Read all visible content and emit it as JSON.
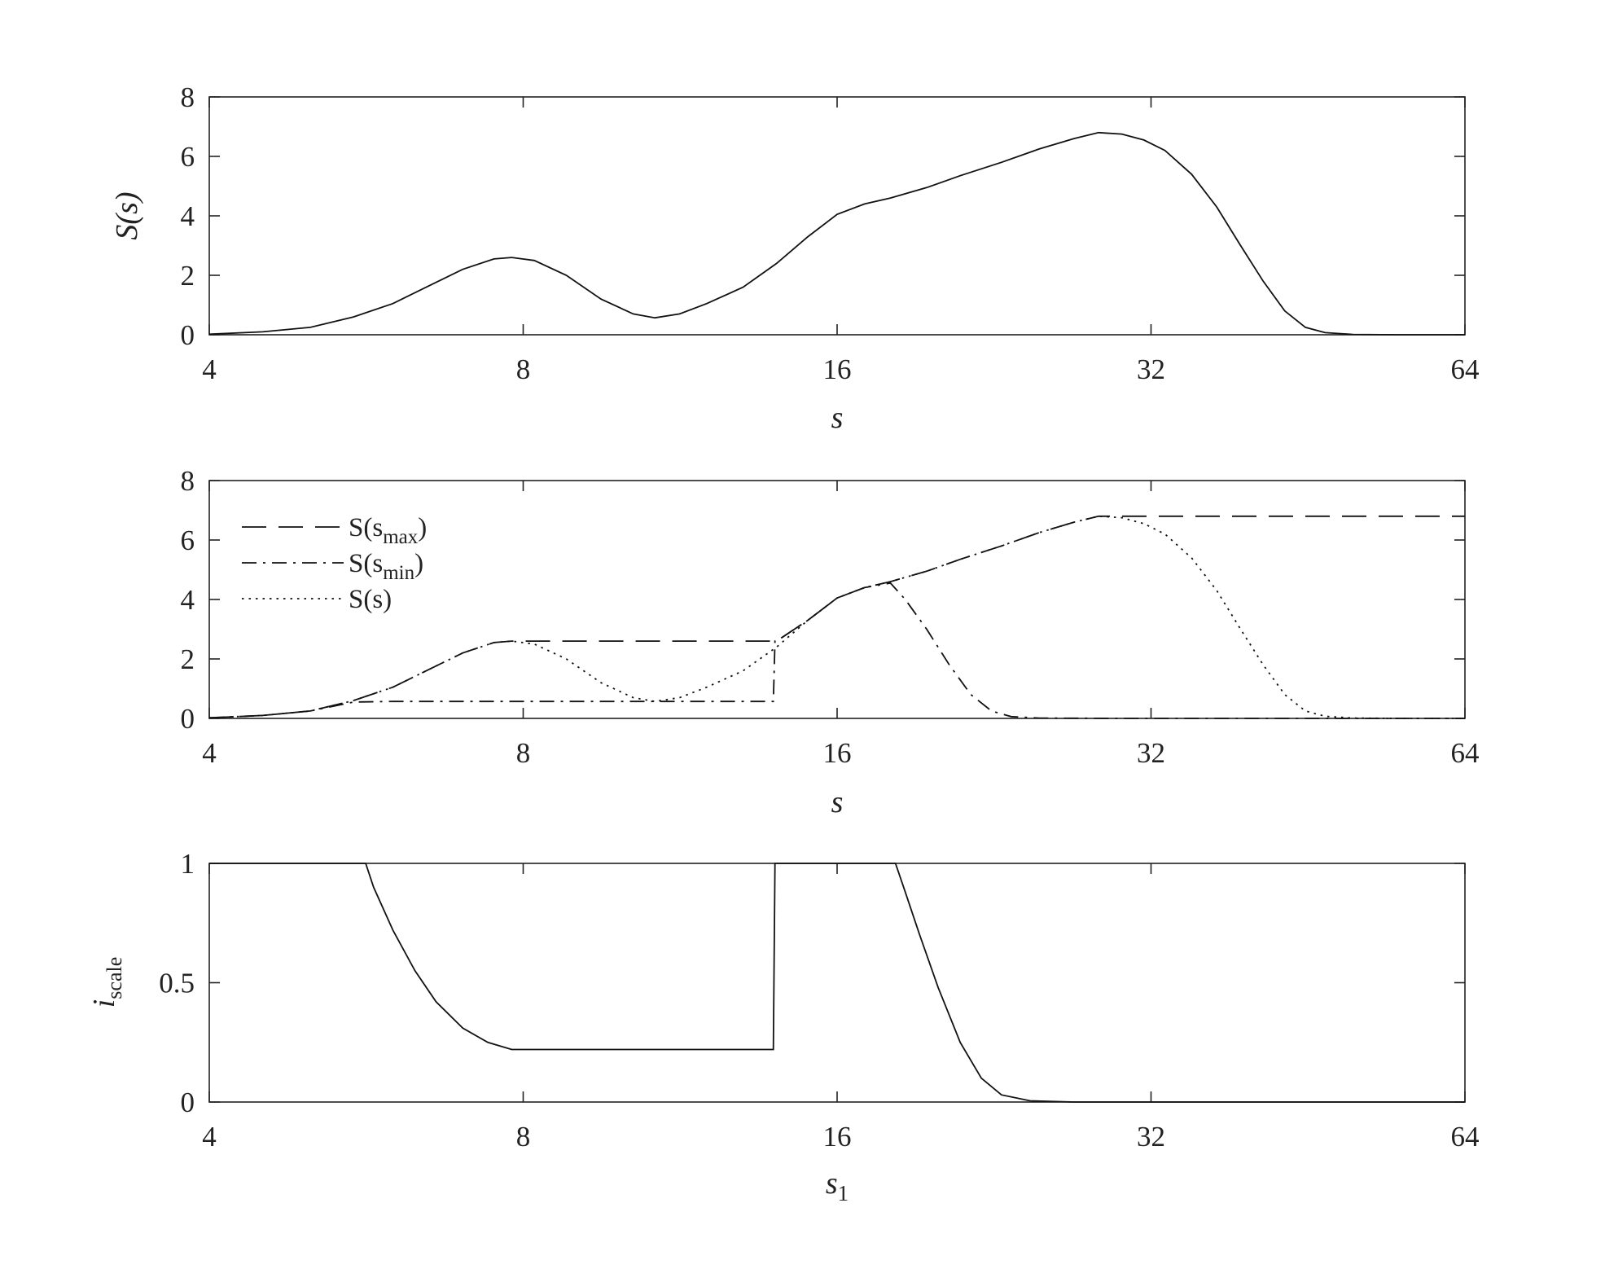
{
  "chart_data": [
    {
      "type": "line",
      "id": "top",
      "xscale": "log2",
      "xlim": [
        4,
        64
      ],
      "ylim": [
        0,
        8
      ],
      "xticks": [
        "4",
        "8",
        "16",
        "32",
        "64"
      ],
      "yticks": [
        "0",
        "2",
        "4",
        "6",
        "8"
      ],
      "xlabel": "s",
      "ylabel": "S(s)",
      "grid": false,
      "series": [
        {
          "dash": "solid",
          "points": [
            [
              4,
              0.02
            ],
            [
              4.5,
              0.1
            ],
            [
              5,
              0.25
            ],
            [
              5.5,
              0.6
            ],
            [
              6,
              1.05
            ],
            [
              6.5,
              1.65
            ],
            [
              7,
              2.2
            ],
            [
              7.5,
              2.55
            ],
            [
              7.8,
              2.6
            ],
            [
              8.2,
              2.5
            ],
            [
              8.8,
              2.0
            ],
            [
              9.5,
              1.2
            ],
            [
              10.2,
              0.7
            ],
            [
              10.7,
              0.57
            ],
            [
              11.3,
              0.7
            ],
            [
              12,
              1.05
            ],
            [
              13,
              1.6
            ],
            [
              14,
              2.4
            ],
            [
              15,
              3.3
            ],
            [
              16,
              4.05
            ],
            [
              17,
              4.4
            ],
            [
              18,
              4.6
            ],
            [
              19.5,
              4.95
            ],
            [
              21,
              5.35
            ],
            [
              23,
              5.8
            ],
            [
              25,
              6.25
            ],
            [
              27,
              6.6
            ],
            [
              28.5,
              6.8
            ],
            [
              30,
              6.75
            ],
            [
              31.5,
              6.55
            ],
            [
              33,
              6.2
            ],
            [
              35,
              5.4
            ],
            [
              37,
              4.3
            ],
            [
              39,
              3.0
            ],
            [
              41,
              1.8
            ],
            [
              43,
              0.8
            ],
            [
              45,
              0.25
            ],
            [
              47,
              0.07
            ],
            [
              50,
              0.01
            ],
            [
              55,
              0
            ],
            [
              64,
              0
            ]
          ]
        }
      ]
    },
    {
      "type": "line",
      "id": "middle",
      "xscale": "log2",
      "xlim": [
        4,
        64
      ],
      "ylim": [
        0,
        8
      ],
      "xticks": [
        "4",
        "8",
        "16",
        "32",
        "64"
      ],
      "yticks": [
        "0",
        "2",
        "4",
        "6",
        "8"
      ],
      "xlabel": "s",
      "ylabel": "",
      "grid": false,
      "legend": "top-left",
      "series": [
        {
          "name": "S(s_max)",
          "legend_main": "S(s",
          "legend_sub": "max",
          "dash": "dashed",
          "points": [
            [
              4,
              0.02
            ],
            [
              4.5,
              0.1
            ],
            [
              5,
              0.25
            ],
            [
              5.5,
              0.6
            ],
            [
              6,
              1.05
            ],
            [
              6.5,
              1.65
            ],
            [
              7,
              2.2
            ],
            [
              7.5,
              2.55
            ],
            [
              7.8,
              2.6
            ],
            [
              8.5,
              2.6
            ],
            [
              10,
              2.6
            ],
            [
              12,
              2.6
            ],
            [
              13.95,
              2.6
            ],
            [
              14,
              2.6
            ],
            [
              15,
              3.3
            ],
            [
              16,
              4.05
            ],
            [
              17,
              4.4
            ],
            [
              18,
              4.6
            ],
            [
              19.5,
              4.95
            ],
            [
              21,
              5.35
            ],
            [
              23,
              5.8
            ],
            [
              25,
              6.25
            ],
            [
              27,
              6.6
            ],
            [
              28.5,
              6.8
            ],
            [
              32,
              6.8
            ],
            [
              40,
              6.8
            ],
            [
              50,
              6.8
            ],
            [
              64,
              6.8
            ]
          ]
        },
        {
          "name": "S(s_min)",
          "legend_main": "S(s",
          "legend_sub": "min",
          "dash": "dashdot",
          "points": [
            [
              4,
              0.02
            ],
            [
              4.5,
              0.1
            ],
            [
              5,
              0.25
            ],
            [
              5.5,
              0.55
            ],
            [
              6,
              0.57
            ],
            [
              8,
              0.57
            ],
            [
              10.7,
              0.57
            ],
            [
              12,
              0.57
            ],
            [
              13.9,
              0.57
            ],
            [
              13.95,
              2.6
            ],
            [
              14,
              2.6
            ],
            [
              15,
              3.3
            ],
            [
              16,
              4.05
            ],
            [
              17,
              4.4
            ],
            [
              18,
              4.55
            ],
            [
              18.6,
              4.0
            ],
            [
              19.5,
              3.0
            ],
            [
              20.5,
              1.8
            ],
            [
              21.5,
              0.8
            ],
            [
              22.5,
              0.25
            ],
            [
              23.5,
              0.06
            ],
            [
              25,
              0.01
            ],
            [
              30,
              0
            ],
            [
              64,
              0
            ]
          ]
        },
        {
          "name": "S(s)",
          "legend_main": "S(s)",
          "legend_sub": "",
          "dash": "dotted",
          "points": [
            [
              4,
              0.02
            ],
            [
              4.5,
              0.1
            ],
            [
              5,
              0.25
            ],
            [
              5.5,
              0.6
            ],
            [
              6,
              1.05
            ],
            [
              6.5,
              1.65
            ],
            [
              7,
              2.2
            ],
            [
              7.5,
              2.55
            ],
            [
              7.8,
              2.6
            ],
            [
              8.2,
              2.5
            ],
            [
              8.8,
              2.0
            ],
            [
              9.5,
              1.2
            ],
            [
              10.2,
              0.7
            ],
            [
              10.7,
              0.57
            ],
            [
              11.3,
              0.7
            ],
            [
              12,
              1.05
            ],
            [
              13,
              1.6
            ],
            [
              14,
              2.4
            ],
            [
              15,
              3.3
            ],
            [
              16,
              4.05
            ],
            [
              17,
              4.4
            ],
            [
              18,
              4.6
            ],
            [
              19.5,
              4.95
            ],
            [
              21,
              5.35
            ],
            [
              23,
              5.8
            ],
            [
              25,
              6.25
            ],
            [
              27,
              6.6
            ],
            [
              28.5,
              6.8
            ],
            [
              30,
              6.75
            ],
            [
              31.5,
              6.55
            ],
            [
              33,
              6.2
            ],
            [
              35,
              5.4
            ],
            [
              37,
              4.3
            ],
            [
              39,
              3.0
            ],
            [
              41,
              1.8
            ],
            [
              43,
              0.8
            ],
            [
              45,
              0.25
            ],
            [
              47,
              0.07
            ],
            [
              50,
              0.01
            ],
            [
              55,
              0
            ],
            [
              64,
              0
            ]
          ]
        }
      ]
    },
    {
      "type": "line",
      "id": "bottom",
      "xscale": "log2",
      "xlim": [
        4,
        64
      ],
      "ylim": [
        0,
        1
      ],
      "xticks": [
        "4",
        "8",
        "16",
        "32",
        "64"
      ],
      "yticks": [
        "0",
        "0.5",
        "1"
      ],
      "xlabel": "s",
      "xlabel_sub": "1",
      "ylabel": "i",
      "ylabel_sub": "scale",
      "grid": false,
      "series": [
        {
          "dash": "solid",
          "points": [
            [
              4,
              1
            ],
            [
              5,
              1
            ],
            [
              5.65,
              1
            ],
            [
              5.75,
              0.9
            ],
            [
              6,
              0.72
            ],
            [
              6.3,
              0.55
            ],
            [
              6.6,
              0.42
            ],
            [
              7,
              0.31
            ],
            [
              7.4,
              0.25
            ],
            [
              7.8,
              0.22
            ],
            [
              8.5,
              0.22
            ],
            [
              10,
              0.22
            ],
            [
              12,
              0.22
            ],
            [
              13.9,
              0.22
            ],
            [
              13.95,
              1
            ],
            [
              14,
              1
            ],
            [
              16,
              1
            ],
            [
              18.2,
              1
            ],
            [
              18.6,
              0.88
            ],
            [
              19.2,
              0.7
            ],
            [
              20,
              0.48
            ],
            [
              21,
              0.25
            ],
            [
              22,
              0.1
            ],
            [
              23,
              0.03
            ],
            [
              24.5,
              0.005
            ],
            [
              27,
              0
            ],
            [
              64,
              0
            ]
          ]
        }
      ]
    }
  ]
}
